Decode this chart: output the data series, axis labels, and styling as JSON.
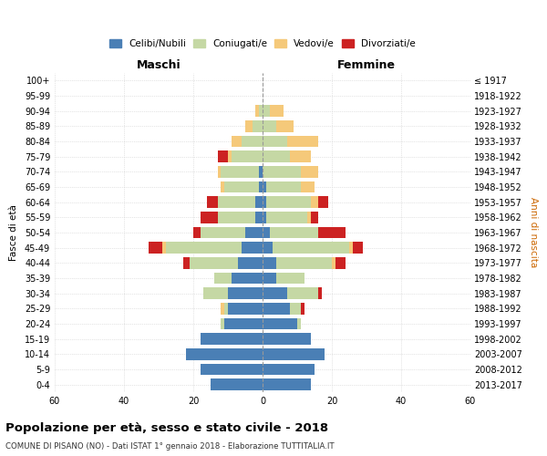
{
  "age_groups": [
    "0-4",
    "5-9",
    "10-14",
    "15-19",
    "20-24",
    "25-29",
    "30-34",
    "35-39",
    "40-44",
    "45-49",
    "50-54",
    "55-59",
    "60-64",
    "65-69",
    "70-74",
    "75-79",
    "80-84",
    "85-89",
    "90-94",
    "95-99",
    "100+"
  ],
  "birth_years": [
    "2013-2017",
    "2008-2012",
    "2003-2007",
    "1998-2002",
    "1993-1997",
    "1988-1992",
    "1983-1987",
    "1978-1982",
    "1973-1977",
    "1968-1972",
    "1963-1967",
    "1958-1962",
    "1953-1957",
    "1948-1952",
    "1943-1947",
    "1938-1942",
    "1933-1937",
    "1928-1932",
    "1923-1927",
    "1918-1922",
    "≤ 1917"
  ],
  "colors": {
    "celibi": "#4a7fb5",
    "coniugati": "#c5d8a4",
    "vedovi": "#f5c97a",
    "divorziati": "#cc2222"
  },
  "male": {
    "celibi": [
      15,
      18,
      22,
      18,
      11,
      10,
      10,
      9,
      7,
      6,
      5,
      2,
      2,
      1,
      1,
      0,
      0,
      0,
      0,
      0,
      0
    ],
    "coniugati": [
      0,
      0,
      0,
      0,
      1,
      1,
      7,
      5,
      14,
      22,
      13,
      11,
      11,
      10,
      11,
      9,
      6,
      3,
      1,
      0,
      0
    ],
    "vedovi": [
      0,
      0,
      0,
      0,
      0,
      1,
      0,
      0,
      0,
      1,
      0,
      0,
      0,
      1,
      1,
      1,
      3,
      2,
      1,
      0,
      0
    ],
    "divorziati": [
      0,
      0,
      0,
      0,
      0,
      0,
      0,
      0,
      2,
      4,
      2,
      5,
      3,
      0,
      0,
      3,
      0,
      0,
      0,
      0,
      0
    ]
  },
  "female": {
    "nubili": [
      14,
      15,
      18,
      14,
      10,
      8,
      7,
      4,
      4,
      3,
      2,
      1,
      1,
      1,
      0,
      0,
      0,
      0,
      0,
      0,
      0
    ],
    "coniugate": [
      0,
      0,
      0,
      0,
      1,
      3,
      9,
      8,
      16,
      22,
      14,
      12,
      13,
      10,
      11,
      8,
      7,
      4,
      2,
      0,
      0
    ],
    "vedove": [
      0,
      0,
      0,
      0,
      0,
      0,
      0,
      0,
      1,
      1,
      0,
      1,
      2,
      4,
      5,
      6,
      9,
      5,
      4,
      0,
      0
    ],
    "divorziate": [
      0,
      0,
      0,
      0,
      0,
      1,
      1,
      0,
      3,
      3,
      8,
      2,
      3,
      0,
      0,
      0,
      0,
      0,
      0,
      0,
      0
    ]
  },
  "xlim": 60,
  "title": "Popolazione per età, sesso e stato civile - 2018",
  "subtitle": "COMUNE DI PISANO (NO) - Dati ISTAT 1° gennaio 2018 - Elaborazione TUTTITALIA.IT",
  "xlabel_left": "Maschi",
  "xlabel_right": "Femmine",
  "ylabel_left": "Fasce di età",
  "ylabel_right": "Anni di nascita",
  "legend_labels": [
    "Celibi/Nubili",
    "Coniugati/e",
    "Vedovi/e",
    "Divorziati/e"
  ],
  "background_color": "#ffffff",
  "grid_color": "#cccccc"
}
